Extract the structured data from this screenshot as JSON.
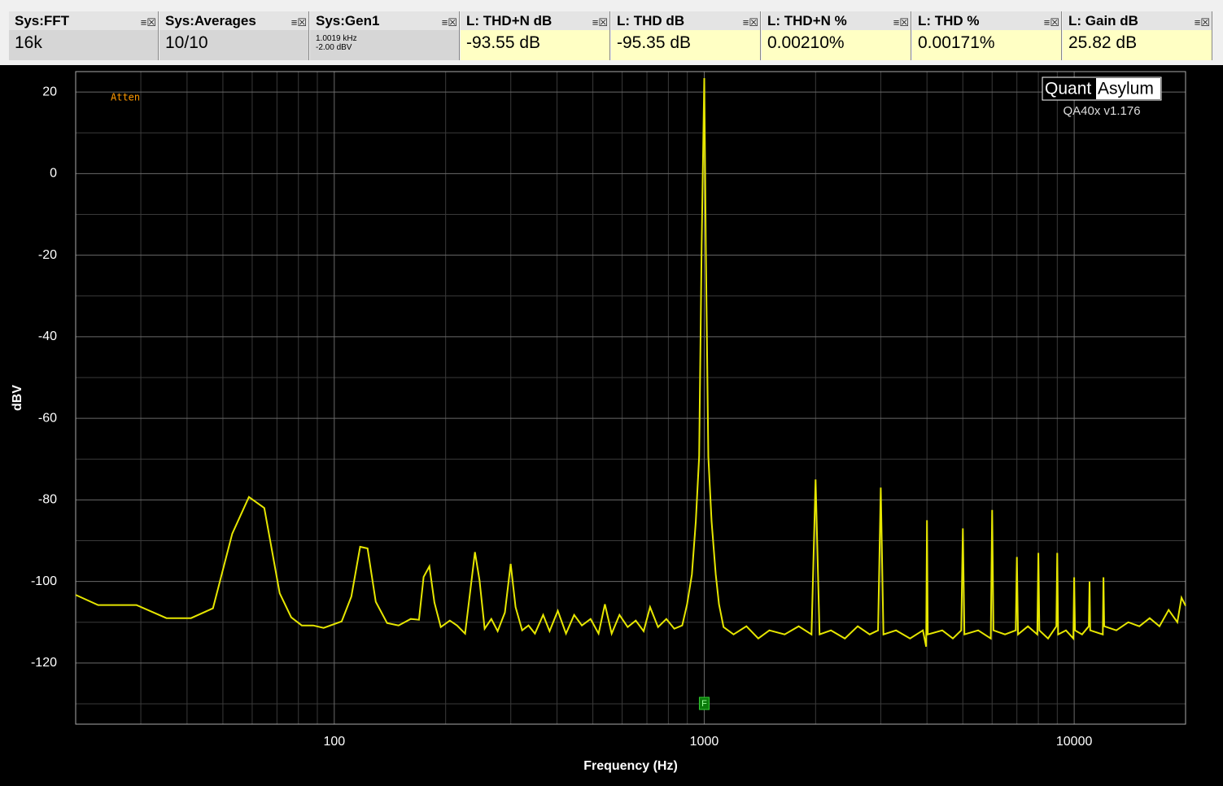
{
  "tiles": [
    {
      "title": "Sys:FFT",
      "value": "16k"
    },
    {
      "title": "Sys:Averages",
      "value": "10/10"
    },
    {
      "title": "Sys:Gen1",
      "lines": [
        "1.0019 kHz",
        "-2.00 dBV"
      ]
    },
    {
      "title": "L: THD+N dB",
      "value": "-93.55 dB"
    },
    {
      "title": "L: THD dB",
      "value": "-95.35 dB"
    },
    {
      "title": "L: THD+N %",
      "value": "0.00210%"
    },
    {
      "title": "L: THD %",
      "value": "0.00171%"
    },
    {
      "title": "L: Gain dB",
      "value": "25.82 dB"
    }
  ],
  "chart_data": {
    "type": "line",
    "xlabel": "Frequency (Hz)",
    "ylabel": "dBV",
    "annotation": "Atten",
    "logo": {
      "brand1": "Quant",
      "brand2": "Asylum",
      "version": "QA40x v1.176"
    },
    "marker": {
      "label": "F",
      "x": 1000
    },
    "xscale": "log",
    "grid": true,
    "xlim": [
      20,
      20000
    ],
    "ylim": [
      -135,
      25
    ],
    "xticks": [
      100,
      1000,
      10000
    ],
    "yticks": [
      -120,
      -100,
      -80,
      -60,
      -40,
      -20,
      0,
      20
    ],
    "xminor": [
      30,
      40,
      50,
      60,
      70,
      80,
      90,
      200,
      300,
      400,
      500,
      600,
      700,
      800,
      900,
      2000,
      3000,
      4000,
      5000,
      6000,
      7000,
      8000,
      9000
    ],
    "yminor": [
      -130,
      -110,
      -90,
      -70,
      -50,
      -30,
      -10,
      10
    ],
    "series": [
      {
        "name": "L",
        "color": "#e6e600",
        "x": [
          20,
          23,
          29.2,
          35.2,
          41,
          47,
          53,
          58.8,
          64.7,
          71.2,
          76.5,
          81.7,
          87.7,
          93.6,
          104.7,
          111.2,
          117.5,
          123,
          129.5,
          138.9,
          149.2,
          161,
          169.4,
          174.4,
          180.8,
          186.5,
          194,
          205.3,
          214.6,
          225.8,
          240,
          247,
          255,
          265.7,
          276.5,
          289.2,
          299.8,
          309,
          322,
          335,
          348.7,
          367,
          382,
          402,
          423,
          445,
          467,
          493,
          518,
          539,
          562,
          590,
          621,
          653,
          686,
          714,
          750,
          790,
          830,
          872,
          899,
          926,
          949,
          969,
          984,
          1000,
          1010,
          1026,
          1047,
          1074,
          1096,
          1128,
          1200,
          1300,
          1400,
          1500,
          1650,
          1800,
          1950,
          2000,
          2050,
          2200,
          2400,
          2600,
          2800,
          2950,
          3000,
          3050,
          3300,
          3600,
          3900,
          3980,
          4000,
          4020,
          4400,
          4700,
          4950,
          5000,
          5050,
          5500,
          5950,
          6000,
          6050,
          6500,
          6950,
          7000,
          7050,
          7500,
          7950,
          8000,
          8050,
          8500,
          8950,
          9000,
          9050,
          9500,
          9950,
          10000,
          10050,
          10500,
          10950,
          11000,
          11050,
          11950,
          12000,
          12050,
          13000,
          14000,
          15000,
          16000,
          17000,
          18000,
          19000,
          19500,
          20000
        ],
        "values": [
          -103.3,
          -105.8,
          -105.8,
          -109,
          -109,
          -106.6,
          -88.3,
          -79.3,
          -82,
          -102.9,
          -108.8,
          -110.8,
          -110.8,
          -111.4,
          -109.8,
          -103.7,
          -91.5,
          -91.9,
          -105,
          -110.2,
          -110.8,
          -109.2,
          -109.4,
          -98.9,
          -96.3,
          -105.2,
          -111.2,
          -109.6,
          -110.8,
          -112.8,
          -92.8,
          -99.7,
          -111.6,
          -109.2,
          -112.2,
          -107.6,
          -95.7,
          -106.3,
          -112,
          -110.8,
          -112.8,
          -108.2,
          -112.2,
          -107.2,
          -112.8,
          -108.2,
          -110.8,
          -109.2,
          -112.8,
          -105.6,
          -112.8,
          -108.2,
          -111.2,
          -109.6,
          -112.2,
          -106.3,
          -111.2,
          -109.2,
          -111.6,
          -110.8,
          -105.6,
          -98.3,
          -85.3,
          -69.4,
          -17.5,
          23.4,
          -17.5,
          -69.4,
          -85.3,
          -98.3,
          -105.6,
          -111.2,
          -113,
          -111,
          -114,
          -112,
          -113,
          -111,
          -113,
          -75,
          -113,
          -112,
          -114,
          -111,
          -113,
          -112,
          -77,
          -113,
          -112,
          -114,
          -112,
          -116,
          -85,
          -113,
          -112,
          -114,
          -112,
          -87,
          -113,
          -112,
          -114,
          -82.5,
          -112,
          -113,
          -112,
          -94,
          -113,
          -111,
          -113,
          -93,
          -112,
          -114,
          -111,
          -93,
          -113,
          -112,
          -114,
          -99,
          -112,
          -113,
          -111,
          -100,
          -112,
          -113,
          -99,
          -111,
          -112,
          -110,
          -111,
          -109,
          -111,
          -107,
          -110,
          -104,
          -106
        ]
      }
    ]
  }
}
